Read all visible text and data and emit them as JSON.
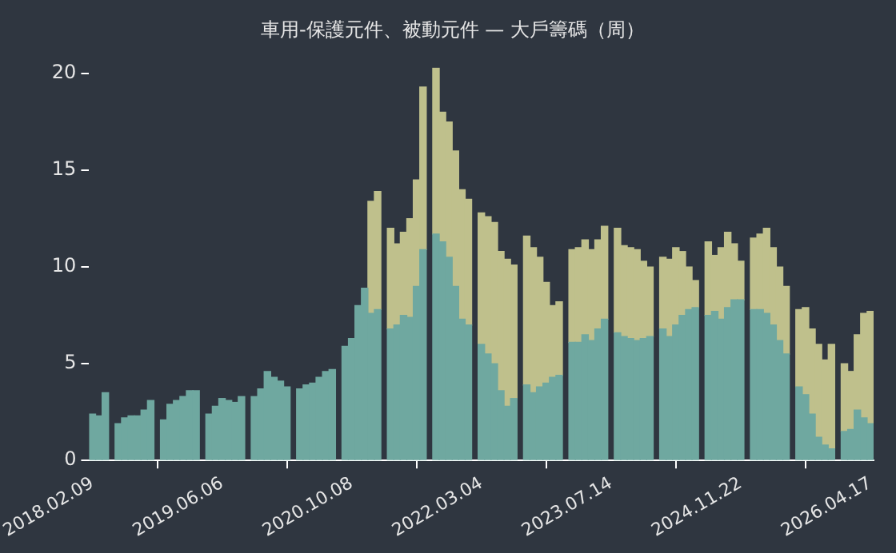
{
  "chart_data": {
    "type": "bar",
    "title": "車用-保護元件、被動元件 — 大戶籌碼（周）",
    "stacked": true,
    "categories": [
      "2018.02.09",
      null,
      null,
      null,
      null,
      null,
      null,
      null,
      null,
      null,
      null,
      null,
      null,
      null,
      null,
      null,
      null,
      null,
      null,
      null,
      "2019.06.06",
      null,
      null,
      null,
      null,
      null,
      null,
      null,
      null,
      null,
      null,
      null,
      null,
      null,
      null,
      null,
      null,
      null,
      null,
      null,
      "2020.10.08",
      null,
      null,
      null,
      null,
      null,
      null,
      null,
      null,
      null,
      null,
      null,
      null,
      null,
      null,
      null,
      null,
      null,
      null,
      null,
      "2022.03.04",
      null,
      null,
      null,
      null,
      null,
      null,
      null,
      null,
      null,
      null,
      null,
      null,
      null,
      null,
      null,
      null,
      null,
      null,
      null,
      "2023.07.14",
      null,
      null,
      null,
      null,
      null,
      null,
      null,
      null,
      null,
      null,
      null,
      null,
      null,
      null,
      null,
      null,
      null,
      null,
      null,
      "2024.11.22",
      null,
      null,
      null,
      null,
      null,
      null,
      null,
      null,
      null,
      null,
      null,
      null,
      null,
      null,
      null,
      null,
      null,
      null,
      null,
      "2026.04.17"
    ],
    "series": [
      {
        "color": "#6fa8a0",
        "values": [
          2.4,
          2.3,
          3.5,
          null,
          1.9,
          2.2,
          2.3,
          2.3,
          2.6,
          3.1,
          null,
          2.1,
          2.9,
          3.1,
          3.3,
          3.6,
          3.6,
          null,
          2.4,
          2.8,
          3.2,
          3.1,
          3.0,
          3.3,
          null,
          3.3,
          3.7,
          4.6,
          4.3,
          4.1,
          3.8,
          null,
          3.7,
          3.9,
          4.0,
          4.3,
          4.6,
          4.7,
          null,
          5.9,
          6.3,
          8.0,
          8.9,
          7.6,
          7.8,
          null,
          6.8,
          7.0,
          7.5,
          7.4,
          9.0,
          10.9,
          null,
          11.7,
          11.3,
          10.5,
          9.0,
          7.3,
          7.0,
          null,
          6.0,
          5.5,
          5.0,
          3.6,
          2.8,
          3.2,
          null,
          3.9,
          3.5,
          3.8,
          4.0,
          4.3,
          4.4,
          null,
          6.1,
          6.1,
          6.5,
          6.2,
          6.8,
          7.3,
          null,
          6.6,
          6.4,
          6.3,
          6.2,
          6.3,
          6.4,
          null,
          6.8,
          6.4,
          7.0,
          7.5,
          7.8,
          7.9,
          null,
          7.5,
          7.7,
          7.3,
          7.9,
          8.3,
          8.3,
          null,
          7.8,
          7.8,
          7.6,
          7.0,
          6.2,
          5.5,
          null,
          3.8,
          3.4,
          2.4,
          1.2,
          0.8,
          0.6,
          null,
          1.5,
          1.6,
          2.6,
          2.2,
          1.9
        ]
      },
      {
        "color": "#bfc08c",
        "values": [
          null,
          null,
          null,
          null,
          null,
          null,
          null,
          null,
          null,
          null,
          null,
          null,
          null,
          null,
          null,
          null,
          null,
          null,
          null,
          null,
          null,
          null,
          null,
          null,
          null,
          null,
          null,
          null,
          null,
          null,
          null,
          null,
          null,
          null,
          null,
          null,
          null,
          null,
          null,
          null,
          null,
          null,
          null,
          5.8,
          6.1,
          null,
          5.2,
          4.2,
          4.3,
          5.1,
          5.5,
          8.4,
          null,
          8.6,
          6.7,
          7.0,
          7.0,
          6.7,
          6.5,
          null,
          6.8,
          7.1,
          7.3,
          7.2,
          7.6,
          6.9,
          null,
          7.7,
          7.5,
          6.7,
          5.2,
          3.7,
          3.8,
          null,
          4.8,
          4.9,
          4.9,
          4.7,
          4.6,
          4.8,
          null,
          5.4,
          4.7,
          4.7,
          4.7,
          4.0,
          3.6,
          null,
          3.7,
          4.0,
          4.0,
          3.3,
          2.2,
          1.4,
          null,
          3.8,
          2.9,
          3.7,
          3.9,
          2.9,
          2.0,
          null,
          3.7,
          3.9,
          4.4,
          4.0,
          3.8,
          3.5,
          null,
          4.0,
          4.5,
          4.4,
          4.8,
          4.4,
          5.4,
          null,
          3.5,
          3.0,
          3.9,
          5.4,
          5.8
        ]
      }
    ],
    "ylim": [
      0,
      20.3
    ],
    "yticks": [
      0,
      5,
      10,
      15,
      20
    ],
    "grid": false,
    "legend": false
  }
}
